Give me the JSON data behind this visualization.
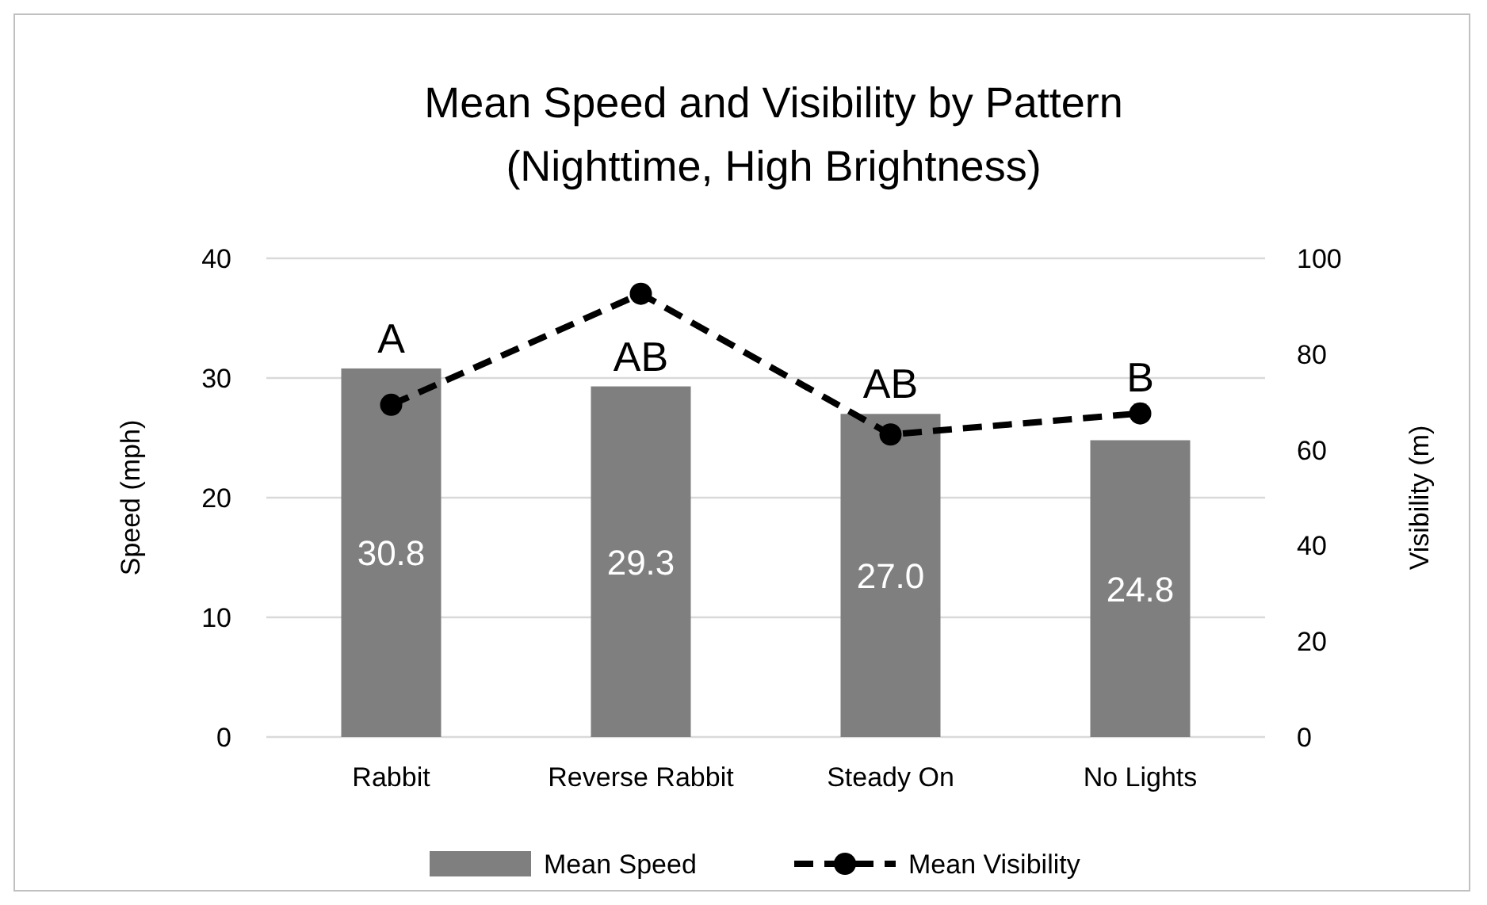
{
  "chart_data": {
    "type": "bar",
    "title": "Mean Speed and Visibility by Pattern\n(Nighttime, High Brightness)",
    "ylabel": "Speed (mph)",
    "y2label": "Visibility (m)",
    "categories": [
      "Rabbit",
      "Reverse Rabbit",
      "Steady On",
      "No Lights"
    ],
    "series": [
      {
        "name": "Mean Speed",
        "color": "#7f7f7f",
        "values": [
          30.8,
          29.3,
          27.0,
          24.8
        ],
        "value_labels": [
          "30.8",
          "29.3",
          "27.0",
          "24.8"
        ]
      },
      {
        "name": "Mean Visibility",
        "type": "line",
        "axis": "y2",
        "color": "#000000",
        "values": [
          69.4,
          92.6,
          63.2,
          67.6
        ],
        "marker": "circle",
        "line_style": "dashed"
      }
    ],
    "ylim": [
      0,
      40
    ],
    "yticks": [
      0,
      10,
      20,
      30,
      40
    ],
    "y2lim": [
      0,
      100
    ],
    "y2ticks": [
      0,
      20,
      40,
      60,
      80,
      100
    ],
    "grid": "y",
    "legend": "bottom",
    "annotations": [
      "A",
      "AB",
      "AB",
      "B"
    ]
  }
}
